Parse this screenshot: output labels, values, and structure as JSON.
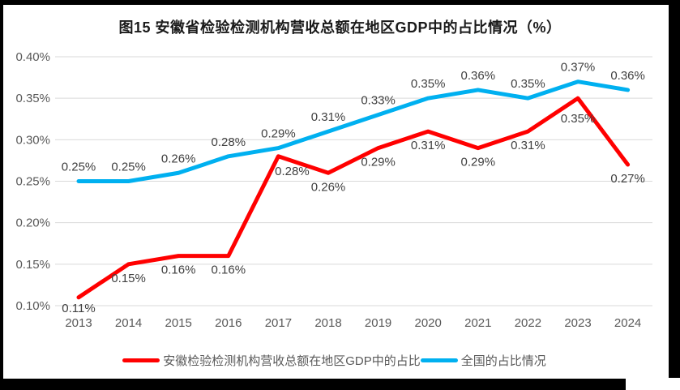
{
  "title": "图15 安徽省检验检测机构营收总额在地区GDP中的占比情况（%）",
  "colors": {
    "anhui_line": "#FF0000",
    "national_line": "#00B0F0",
    "gridline": "#D9D9D9",
    "axis_text": "#595959",
    "data_label_text": "#404040",
    "frame": "#000000",
    "title_text": "#1a1a1a"
  },
  "legend": {
    "items": [
      {
        "label": "安徽检验检测机构营收总额在地区GDP中的占比",
        "color_key": "anhui_line"
      },
      {
        "label": "全国的占比情况",
        "color_key": "national_line"
      }
    ]
  },
  "chart_data": {
    "type": "line",
    "title": "图15 安徽省检验检测机构营收总额在地区GDP中的占比情况（%）",
    "categories": [
      "2013",
      "2014",
      "2015",
      "2016",
      "2017",
      "2018",
      "2019",
      "2020",
      "2021",
      "2022",
      "2023",
      "2024"
    ],
    "series": [
      {
        "name": "安徽检验检测机构营收总额在地区GDP中的占比",
        "color_key": "anhui_line",
        "values": [
          0.11,
          0.15,
          0.16,
          0.16,
          0.28,
          0.26,
          0.29,
          0.31,
          0.29,
          0.31,
          0.35,
          0.27
        ],
        "labels": [
          "0.11%",
          "0.15%",
          "0.16%",
          "0.16%",
          "0.28%",
          "0.26%",
          "0.29%",
          "0.31%",
          "0.29%",
          "0.31%",
          "0.35%",
          "0.27%"
        ],
        "label_position": "below"
      },
      {
        "name": "全国的占比情况",
        "color_key": "national_line",
        "values": [
          0.25,
          0.25,
          0.26,
          0.28,
          0.29,
          0.31,
          0.33,
          0.35,
          0.36,
          0.35,
          0.37,
          0.36
        ],
        "labels": [
          "0.25%",
          "0.25%",
          "0.26%",
          "0.28%",
          "0.29%",
          "0.31%",
          "0.33%",
          "0.35%",
          "0.36%",
          "0.35%",
          "0.37%",
          "0.36%"
        ],
        "label_position": "above"
      }
    ],
    "xlabel": "",
    "ylabel": "",
    "y_ticks": [
      "0.40%",
      "0.35%",
      "0.30%",
      "0.25%",
      "0.20%",
      "0.15%",
      "0.10%"
    ],
    "ylim": [
      0.1,
      0.4
    ],
    "grid": true,
    "legend_position": "bottom"
  }
}
